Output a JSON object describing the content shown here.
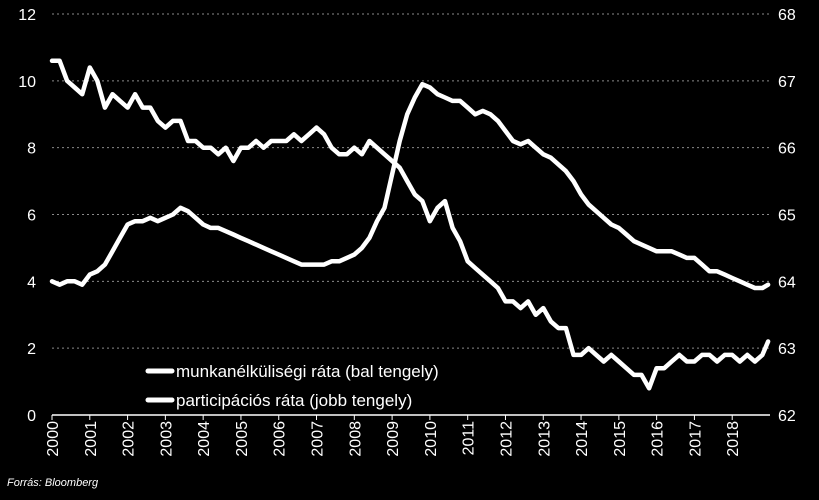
{
  "source_note": "Forrás: Bloomberg",
  "colors": {
    "background": "#000000",
    "line": "#ffffff",
    "grid": "#8a8a8a"
  },
  "chart_data": {
    "type": "line",
    "title": "",
    "xlabel": "",
    "grid": true,
    "x_tick_labels": [
      "2000",
      "2001",
      "2002",
      "2003",
      "2004",
      "2005",
      "2006",
      "2007",
      "2008",
      "2009",
      "2010",
      "2011",
      "2012",
      "2013",
      "2014",
      "2015",
      "2016",
      "2017",
      "2018"
    ],
    "xlim": [
      2000.0,
      2019.0
    ],
    "y_left": {
      "label": "",
      "lim": [
        0,
        12
      ],
      "ticks": [
        "0",
        "2",
        "4",
        "6",
        "8",
        "10",
        "12"
      ]
    },
    "y_right": {
      "label": "",
      "lim": [
        62,
        68
      ],
      "ticks": [
        "62",
        "63",
        "64",
        "65",
        "66",
        "67",
        "68"
      ]
    },
    "legend_position": "bottom-left-center",
    "series": [
      {
        "name": "munkanélküliségi ráta (bal tengely)",
        "axis": "left",
        "x": [
          2000.0,
          2000.2,
          2000.4,
          2000.6,
          2000.8,
          2001.0,
          2001.2,
          2001.4,
          2001.6,
          2001.8,
          2002.0,
          2002.2,
          2002.4,
          2002.6,
          2002.8,
          2003.0,
          2003.2,
          2003.4,
          2003.6,
          2003.8,
          2004.0,
          2004.2,
          2004.4,
          2004.6,
          2004.8,
          2005.0,
          2005.2,
          2005.4,
          2005.6,
          2005.8,
          2006.0,
          2006.2,
          2006.4,
          2006.6,
          2006.8,
          2007.0,
          2007.2,
          2007.4,
          2007.6,
          2007.8,
          2008.0,
          2008.2,
          2008.4,
          2008.6,
          2008.8,
          2009.0,
          2009.2,
          2009.4,
          2009.6,
          2009.8,
          2010.0,
          2010.2,
          2010.4,
          2010.6,
          2010.8,
          2011.0,
          2011.2,
          2011.4,
          2011.6,
          2011.8,
          2012.0,
          2012.2,
          2012.4,
          2012.6,
          2012.8,
          2013.0,
          2013.2,
          2013.4,
          2013.6,
          2013.8,
          2014.0,
          2014.2,
          2014.4,
          2014.6,
          2014.8,
          2015.0,
          2015.2,
          2015.4,
          2015.6,
          2015.8,
          2016.0,
          2016.2,
          2016.4,
          2016.6,
          2016.8,
          2017.0,
          2017.2,
          2017.4,
          2017.6,
          2017.8,
          2018.0,
          2018.2,
          2018.4,
          2018.6,
          2018.8,
          2018.95
        ],
        "values": [
          4.0,
          3.9,
          4.0,
          4.0,
          3.9,
          4.2,
          4.3,
          4.5,
          4.9,
          5.3,
          5.7,
          5.8,
          5.8,
          5.9,
          5.8,
          5.9,
          6.0,
          6.2,
          6.1,
          5.9,
          5.7,
          5.6,
          5.6,
          5.5,
          5.4,
          5.3,
          5.2,
          5.1,
          5.0,
          4.9,
          4.8,
          4.7,
          4.6,
          4.5,
          4.5,
          4.5,
          4.5,
          4.6,
          4.6,
          4.7,
          4.8,
          5.0,
          5.3,
          5.8,
          6.2,
          7.2,
          8.2,
          9.0,
          9.5,
          9.9,
          9.8,
          9.6,
          9.5,
          9.4,
          9.4,
          9.2,
          9.0,
          9.1,
          9.0,
          8.8,
          8.5,
          8.2,
          8.1,
          8.2,
          8.0,
          7.8,
          7.7,
          7.5,
          7.3,
          7.0,
          6.6,
          6.3,
          6.1,
          5.9,
          5.7,
          5.6,
          5.4,
          5.2,
          5.1,
          5.0,
          4.9,
          4.9,
          4.9,
          4.8,
          4.7,
          4.7,
          4.5,
          4.3,
          4.3,
          4.2,
          4.1,
          4.0,
          3.9,
          3.8,
          3.8,
          3.9
        ]
      },
      {
        "name": "participációs ráta (jobb tengely)",
        "axis": "right",
        "x": [
          2000.0,
          2000.2,
          2000.4,
          2000.6,
          2000.8,
          2001.0,
          2001.2,
          2001.4,
          2001.6,
          2001.8,
          2002.0,
          2002.2,
          2002.4,
          2002.6,
          2002.8,
          2003.0,
          2003.2,
          2003.4,
          2003.6,
          2003.8,
          2004.0,
          2004.2,
          2004.4,
          2004.6,
          2004.8,
          2005.0,
          2005.2,
          2005.4,
          2005.6,
          2005.8,
          2006.0,
          2006.2,
          2006.4,
          2006.6,
          2006.8,
          2007.0,
          2007.2,
          2007.4,
          2007.6,
          2007.8,
          2008.0,
          2008.2,
          2008.4,
          2008.6,
          2008.8,
          2009.0,
          2009.2,
          2009.4,
          2009.6,
          2009.8,
          2010.0,
          2010.2,
          2010.4,
          2010.6,
          2010.8,
          2011.0,
          2011.2,
          2011.4,
          2011.6,
          2011.8,
          2012.0,
          2012.2,
          2012.4,
          2012.6,
          2012.8,
          2013.0,
          2013.2,
          2013.4,
          2013.6,
          2013.8,
          2014.0,
          2014.2,
          2014.4,
          2014.6,
          2014.8,
          2015.0,
          2015.2,
          2015.4,
          2015.6,
          2015.8,
          2016.0,
          2016.2,
          2016.4,
          2016.6,
          2016.8,
          2017.0,
          2017.2,
          2017.4,
          2017.6,
          2017.8,
          2018.0,
          2018.2,
          2018.4,
          2018.6,
          2018.8,
          2018.95
        ],
        "values": [
          67.3,
          67.3,
          67.0,
          66.9,
          66.8,
          67.2,
          67.0,
          66.6,
          66.8,
          66.7,
          66.6,
          66.8,
          66.6,
          66.6,
          66.4,
          66.3,
          66.4,
          66.4,
          66.1,
          66.1,
          66.0,
          66.0,
          65.9,
          66.0,
          65.8,
          66.0,
          66.0,
          66.1,
          66.0,
          66.1,
          66.1,
          66.1,
          66.2,
          66.1,
          66.2,
          66.3,
          66.2,
          66.0,
          65.9,
          65.9,
          66.0,
          65.9,
          66.1,
          66.0,
          65.9,
          65.8,
          65.7,
          65.5,
          65.3,
          65.2,
          64.9,
          65.1,
          65.2,
          64.8,
          64.6,
          64.3,
          64.2,
          64.1,
          64.0,
          63.9,
          63.7,
          63.7,
          63.6,
          63.7,
          63.5,
          63.6,
          63.4,
          63.3,
          63.3,
          62.9,
          62.9,
          63.0,
          62.9,
          62.8,
          62.9,
          62.8,
          62.7,
          62.6,
          62.6,
          62.4,
          62.7,
          62.7,
          62.8,
          62.9,
          62.8,
          62.8,
          62.9,
          62.9,
          62.8,
          62.9,
          62.9,
          62.8,
          62.9,
          62.8,
          62.9,
          63.1
        ]
      }
    ]
  }
}
